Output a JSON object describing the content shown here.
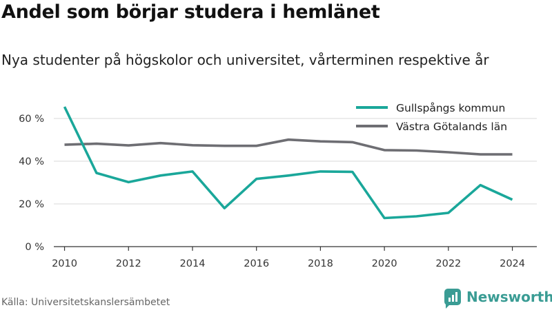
{
  "title": "Andel som börjar studera i hemlänet",
  "subtitle": "Nya studenter på högskolor och universitet, vårterminen respektive år",
  "source": "Källa: Universitetskanslersämbetet",
  "brand": {
    "name": "Newsworthy",
    "icon": "newsworthy-bar-chart-icon"
  },
  "chart_data": {
    "type": "line",
    "x": [
      2010,
      2011,
      2012,
      2013,
      2014,
      2015,
      2016,
      2017,
      2018,
      2019,
      2020,
      2021,
      2022,
      2023,
      2024
    ],
    "xticks": [
      2010,
      2012,
      2014,
      2016,
      2018,
      2020,
      2022,
      2024
    ],
    "xtick_labels": [
      "2010",
      "2012",
      "2014",
      "2016",
      "2018",
      "2020",
      "2022",
      "2024"
    ],
    "yticks": [
      0,
      20,
      40,
      60
    ],
    "ytick_labels": [
      "0 %",
      "20 %",
      "40 %",
      "60 %"
    ],
    "ylim": [
      0,
      70
    ],
    "grid": true,
    "legend_position": "top-right",
    "series": [
      {
        "name": "Gullspångs kommun",
        "color": "#1aa79a",
        "values": [
          65.5,
          34.5,
          30.2,
          33.3,
          35.2,
          18.0,
          31.7,
          33.3,
          35.2,
          35.0,
          13.4,
          14.2,
          15.8,
          28.8,
          22.0
        ]
      },
      {
        "name": "Västra Götalands län",
        "color": "#6e6e73",
        "values": [
          47.7,
          48.2,
          47.4,
          48.5,
          47.5,
          47.2,
          47.2,
          50.1,
          49.3,
          48.9,
          45.2,
          45.0,
          44.2,
          43.2,
          43.2
        ]
      }
    ]
  }
}
